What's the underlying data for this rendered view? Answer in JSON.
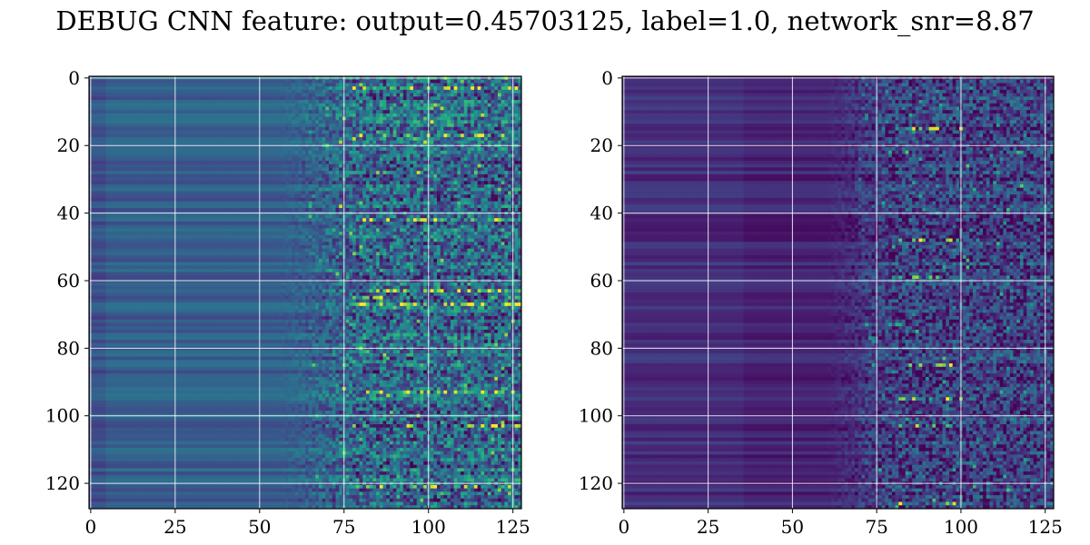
{
  "figure": {
    "title": "DEBUG CNN feature: output=0.45703125, label=1.0, network_snr=8.87"
  },
  "chart_data": [
    {
      "type": "heatmap",
      "title": "",
      "xlabel": "",
      "ylabel": "",
      "xlim": [
        0,
        127
      ],
      "ylim": [
        127,
        0
      ],
      "xticks": [
        "0",
        "25",
        "50",
        "75",
        "100",
        "125"
      ],
      "yticks": [
        "0",
        "20",
        "40",
        "60",
        "80",
        "100",
        "120"
      ],
      "grid": true,
      "colormap": "viridis",
      "shape": [
        128,
        128
      ],
      "pattern": "low uniform values for columns 0-60 with row banding, increasing speckled intensity for columns 65-127, bright rows near 17, 63, 65, 67, 103",
      "bright_rows": [
        3,
        17,
        42,
        63,
        65,
        67,
        93,
        103,
        121
      ],
      "bright_columns_start": 65
    },
    {
      "type": "heatmap",
      "title": "",
      "xlabel": "",
      "ylabel": "",
      "xlim": [
        0,
        127
      ],
      "ylim": [
        127,
        0
      ],
      "xticks": [
        "0",
        "25",
        "50",
        "75",
        "100",
        "125"
      ],
      "yticks": [
        "0",
        "20",
        "40",
        "60",
        "80",
        "100",
        "120"
      ],
      "grid": true,
      "colormap": "viridis",
      "shape": [
        128,
        128
      ],
      "pattern": "dark background with row banding for columns 0-65, sparse speckled brighter values for columns 70-127, bright spots near rows 15, 48, 85, 95, 103, 126",
      "bright_rows": [
        15,
        48,
        59,
        85,
        95,
        103,
        126
      ],
      "bright_columns_start": 70
    }
  ]
}
